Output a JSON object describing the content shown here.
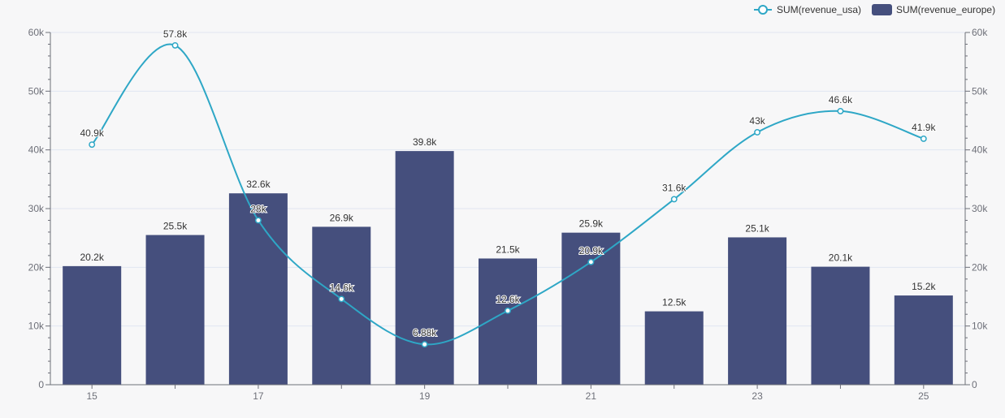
{
  "chart_data": {
    "type": "bar",
    "x": [
      15,
      16,
      17,
      18,
      19,
      20,
      21,
      22,
      23,
      24,
      25
    ],
    "x_tick_labels": [
      "15",
      "17",
      "19",
      "21",
      "23",
      "25"
    ],
    "y_tick_labels": [
      "0",
      "10k",
      "20k",
      "30k",
      "40k",
      "50k",
      "60k"
    ],
    "ylim": [
      0,
      60000
    ],
    "grid": true,
    "legend_position": "top-right",
    "series": [
      {
        "name": "SUM(revenue_usa)",
        "type": "line",
        "smooth": true,
        "color": "#2ea7c6",
        "values": [
          40900,
          57800,
          28000,
          14600,
          6880,
          12600,
          20900,
          31600,
          43000,
          46600,
          41900
        ],
        "labels": [
          "40.9k",
          "57.8k",
          "28k",
          "14.6k",
          "6.88k",
          "12.6k",
          "20.9k",
          "31.6k",
          "43k",
          "46.6k",
          "41.9k"
        ]
      },
      {
        "name": "SUM(revenue_europe)",
        "type": "bar",
        "color": "#454f7d",
        "values": [
          20200,
          25500,
          32600,
          26900,
          39800,
          21500,
          25900,
          12500,
          25100,
          20100,
          15200
        ],
        "labels": [
          "20.2k",
          "25.5k",
          "32.6k",
          "26.9k",
          "39.8k",
          "21.5k",
          "25.9k",
          "12.5k",
          "25.1k",
          "20.1k",
          "15.2k"
        ]
      }
    ]
  }
}
